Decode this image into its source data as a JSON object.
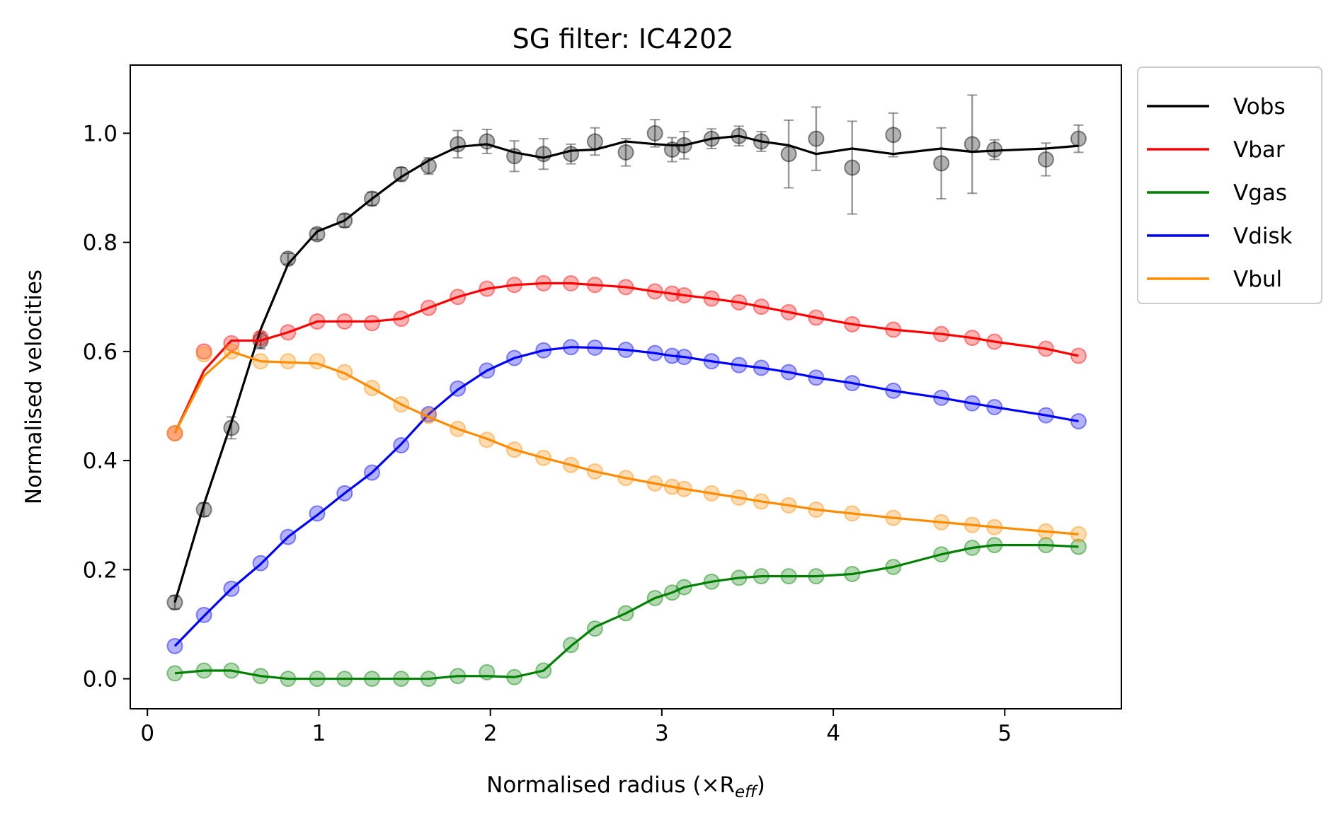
{
  "chart_data": {
    "type": "line",
    "title": "SG filter: IC4202",
    "xlabel": "Normalised radius (×R",
    "xlabel_sub": "eff",
    "xlabel_close": ")",
    "ylabel": "Normalised velocities",
    "xlim": [
      -0.1,
      5.68
    ],
    "ylim": [
      -0.055,
      1.125
    ],
    "xticks": [
      0,
      1,
      2,
      3,
      4,
      5
    ],
    "yticks": [
      0.0,
      0.2,
      0.4,
      0.6,
      0.8,
      1.0
    ],
    "xtick_labels": [
      "0",
      "1",
      "2",
      "3",
      "4",
      "5"
    ],
    "ytick_labels": [
      "0.0",
      "0.2",
      "0.4",
      "0.6",
      "0.8",
      "1.0"
    ],
    "grid": false,
    "legend_position": "outside-top-right",
    "x": [
      0.16,
      0.33,
      0.49,
      0.66,
      0.82,
      0.99,
      1.15,
      1.31,
      1.48,
      1.64,
      1.81,
      1.98,
      2.14,
      2.31,
      2.47,
      2.61,
      2.79,
      2.96,
      3.06,
      3.13,
      3.29,
      3.45,
      3.58,
      3.74,
      3.9,
      4.11,
      4.35,
      4.63,
      4.81,
      4.94,
      5.24,
      5.43
    ],
    "series": [
      {
        "name": "Vobs",
        "color": "#000000",
        "line": [
          0.14,
          0.32,
          0.47,
          0.64,
          0.76,
          0.82,
          0.84,
          0.88,
          0.92,
          0.95,
          0.975,
          0.98,
          0.965,
          0.955,
          0.968,
          0.97,
          0.985,
          0.98,
          0.978,
          0.978,
          0.99,
          0.995,
          0.985,
          0.978,
          0.962,
          0.972,
          0.962,
          0.972,
          0.966,
          0.968,
          0.972,
          0.977
        ],
        "points": [
          0.14,
          0.31,
          0.46,
          0.62,
          0.77,
          0.815,
          0.84,
          0.88,
          0.925,
          0.94,
          0.98,
          0.985,
          0.958,
          0.962,
          0.962,
          0.985,
          0.965,
          1.0,
          0.97,
          0.978,
          0.99,
          0.995,
          0.985,
          0.962,
          0.99,
          0.937,
          0.997,
          0.945,
          0.98,
          0.97,
          0.952,
          0.99
        ],
        "errors": [
          0.012,
          0.012,
          0.02,
          0.015,
          0.01,
          0.01,
          0.012,
          0.012,
          0.012,
          0.015,
          0.025,
          0.022,
          0.028,
          0.028,
          0.018,
          0.025,
          0.025,
          0.025,
          0.022,
          0.025,
          0.018,
          0.018,
          0.018,
          0.062,
          0.058,
          0.085,
          0.04,
          0.065,
          0.09,
          0.018,
          0.03,
          0.025
        ]
      },
      {
        "name": "Vbar",
        "color": "#ff0000",
        "line": [
          0.45,
          0.565,
          0.62,
          0.62,
          0.635,
          0.655,
          0.655,
          0.655,
          0.66,
          0.68,
          0.7,
          0.715,
          0.722,
          0.725,
          0.725,
          0.722,
          0.718,
          0.71,
          0.706,
          0.703,
          0.697,
          0.69,
          0.682,
          0.672,
          0.662,
          0.65,
          0.64,
          0.632,
          0.625,
          0.618,
          0.605,
          0.592
        ],
        "points": [
          0.45,
          0.6,
          0.615,
          0.625,
          0.635,
          0.655,
          0.655,
          0.652,
          0.66,
          0.68,
          0.7,
          0.715,
          0.722,
          0.725,
          0.725,
          0.722,
          0.718,
          0.71,
          0.706,
          0.703,
          0.697,
          0.69,
          0.682,
          0.672,
          0.662,
          0.65,
          0.64,
          0.632,
          0.625,
          0.618,
          0.605,
          0.592
        ]
      },
      {
        "name": "Vgas",
        "color": "#008000",
        "line": [
          0.01,
          0.015,
          0.015,
          0.005,
          0.0,
          0.0,
          0.0,
          0.0,
          0.0,
          0.0,
          0.005,
          0.005,
          0.003,
          0.015,
          0.06,
          0.095,
          0.12,
          0.148,
          0.158,
          0.168,
          0.178,
          0.185,
          0.188,
          0.188,
          0.188,
          0.192,
          0.205,
          0.228,
          0.24,
          0.245,
          0.245,
          0.242
        ],
        "points": [
          0.01,
          0.015,
          0.015,
          0.005,
          0.0,
          0.0,
          0.0,
          0.0,
          0.0,
          0.0,
          0.005,
          0.012,
          0.003,
          0.015,
          0.062,
          0.092,
          0.12,
          0.148,
          0.158,
          0.168,
          0.178,
          0.185,
          0.188,
          0.188,
          0.188,
          0.192,
          0.205,
          0.228,
          0.24,
          0.245,
          0.245,
          0.242
        ]
      },
      {
        "name": "Vdisk",
        "color": "#0000ff",
        "line": [
          0.06,
          0.115,
          0.165,
          0.21,
          0.26,
          0.3,
          0.34,
          0.378,
          0.43,
          0.485,
          0.53,
          0.565,
          0.588,
          0.602,
          0.608,
          0.607,
          0.603,
          0.597,
          0.592,
          0.59,
          0.582,
          0.575,
          0.57,
          0.562,
          0.552,
          0.542,
          0.528,
          0.515,
          0.505,
          0.498,
          0.483,
          0.472
        ],
        "points": [
          0.06,
          0.117,
          0.165,
          0.212,
          0.26,
          0.303,
          0.34,
          0.378,
          0.428,
          0.485,
          0.532,
          0.565,
          0.588,
          0.602,
          0.608,
          0.607,
          0.603,
          0.597,
          0.592,
          0.59,
          0.582,
          0.575,
          0.57,
          0.562,
          0.552,
          0.542,
          0.528,
          0.515,
          0.505,
          0.498,
          0.483,
          0.472
        ]
      },
      {
        "name": "Vbul",
        "color": "#ff8c00",
        "line": [
          0.45,
          0.555,
          0.6,
          0.582,
          0.58,
          0.578,
          0.56,
          0.533,
          0.503,
          0.48,
          0.458,
          0.44,
          0.42,
          0.405,
          0.392,
          0.38,
          0.368,
          0.358,
          0.352,
          0.348,
          0.34,
          0.332,
          0.325,
          0.318,
          0.31,
          0.303,
          0.295,
          0.287,
          0.282,
          0.278,
          0.27,
          0.265
        ],
        "points": [
          0.45,
          0.595,
          0.6,
          0.582,
          0.582,
          0.582,
          0.562,
          0.533,
          0.503,
          0.482,
          0.458,
          0.438,
          0.42,
          0.405,
          0.392,
          0.38,
          0.368,
          0.358,
          0.352,
          0.348,
          0.34,
          0.332,
          0.325,
          0.318,
          0.31,
          0.303,
          0.295,
          0.287,
          0.282,
          0.278,
          0.27,
          0.265
        ]
      }
    ]
  }
}
